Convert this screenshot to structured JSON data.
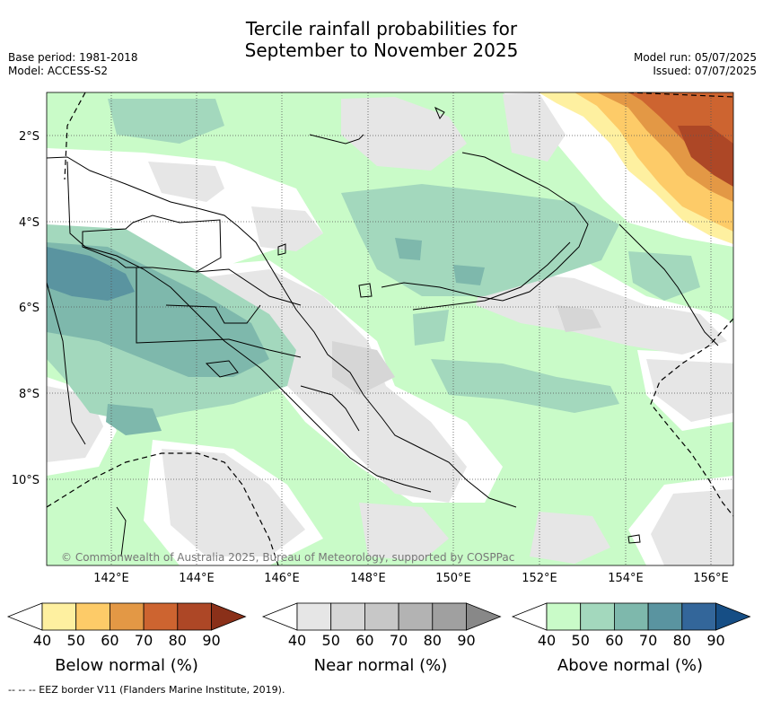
{
  "title": {
    "line1": "Tercile rainfall probabilities for",
    "line2": "September to November 2025"
  },
  "meta": {
    "base_period": "Base period: 1981-2018",
    "model": "Model: ACCESS-S2",
    "model_run": "Model run: 05/07/2025",
    "issued": "Issued: 07/07/2025"
  },
  "axes": {
    "lat_labels": [
      "2°S",
      "4°S",
      "6°S",
      "8°S",
      "10°S"
    ],
    "lon_labels": [
      "142°E",
      "144°E",
      "146°E",
      "148°E",
      "150°E",
      "152°E",
      "154°E",
      "156°E"
    ]
  },
  "copyright": "© Commonwealth of Australia 2025, Bureau of Meteorology, supported by COSPPac",
  "colorbars": [
    {
      "title": "Below normal (%)",
      "ticks": [
        "40",
        "50",
        "60",
        "70",
        "80",
        "90"
      ],
      "colors": [
        "#ffffff",
        "#fef0a0",
        "#fdcb68",
        "#e39845",
        "#cd6430",
        "#ad4726",
        "#8a3019"
      ]
    },
    {
      "title": "Near normal (%)",
      "ticks": [
        "40",
        "50",
        "60",
        "70",
        "80",
        "90"
      ],
      "colors": [
        "#ffffff",
        "#e6e6e6",
        "#d6d6d6",
        "#c7c7c7",
        "#b3b3b3",
        "#a0a0a0",
        "#888888"
      ]
    },
    {
      "title": "Above normal (%)",
      "ticks": [
        "40",
        "50",
        "60",
        "70",
        "80",
        "90"
      ],
      "colors": [
        "#ffffff",
        "#c9fbc8",
        "#a3d8bd",
        "#7eb8ac",
        "#5a94a0",
        "#33669a",
        "#164e85"
      ]
    }
  ],
  "footnote": "--  --  -- EEZ border V11 (Flanders Marine Institute, 2019)."
}
